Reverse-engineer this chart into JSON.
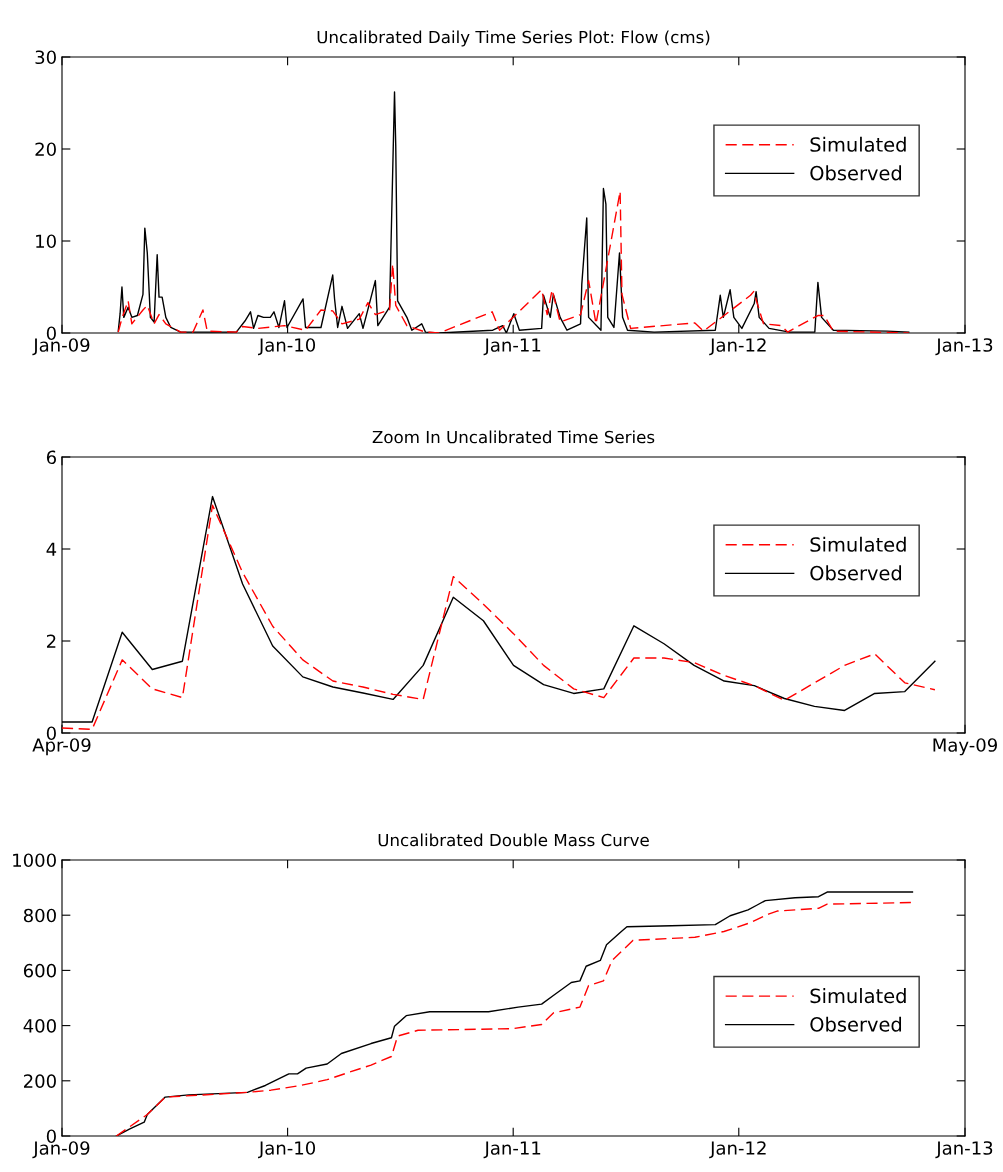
{
  "chart_data": [
    {
      "type": "line",
      "title": "Uncalibrated Daily Time Series Plot: Flow (cms)",
      "xlim": [
        "2009-01-01",
        "2013-01-01"
      ],
      "ylim": [
        0,
        30
      ],
      "xticks": [
        {
          "value": "2009-01-01",
          "label": "Jan-09"
        },
        {
          "value": "2010-01-01",
          "label": "Jan-10"
        },
        {
          "value": "2011-01-01",
          "label": "Jan-11"
        },
        {
          "value": "2012-01-01",
          "label": "Jan-12"
        },
        {
          "value": "2013-01-01",
          "label": "Jan-13"
        }
      ],
      "yticks": [
        0,
        10,
        20,
        30
      ],
      "grid": false,
      "legend": "right",
      "series": [
        {
          "name": "Simulated",
          "color": "#ff0000",
          "line_style": "dashed",
          "x": [
            "2009-04-02",
            "2009-04-08",
            "2009-04-18",
            "2009-04-24",
            "2009-05-12",
            "2009-05-19",
            "2009-05-30",
            "2009-06-07",
            "2009-06-18",
            "2009-07-12",
            "2009-08-01",
            "2009-08-17",
            "2009-08-24",
            "2009-10-10",
            "2009-10-20",
            "2009-11-14",
            "2009-12-27",
            "2010-01-30",
            "2010-02-24",
            "2010-03-15",
            "2010-03-30",
            "2010-04-27",
            "2010-05-11",
            "2010-05-23",
            "2010-06-15",
            "2010-06-20",
            "2010-06-25",
            "2010-07-13",
            "2010-08-12",
            "2010-09-03",
            "2010-11-28",
            "2010-12-10",
            "2011-02-16",
            "2011-02-25",
            "2011-03-05",
            "2011-03-18",
            "2011-04-20",
            "2011-05-03",
            "2011-05-15",
            "2011-06-23",
            "2011-06-26",
            "2011-07-10",
            "2011-10-22",
            "2011-11-05",
            "2012-01-20",
            "2012-01-25",
            "2012-02-10",
            "2012-03-10",
            "2012-03-20",
            "2012-05-08",
            "2012-05-18",
            "2012-06-02",
            "2012-10-02"
          ],
          "values": [
            0.1,
            1.6,
            3.5,
            1.0,
            2.5,
            3.0,
            1.0,
            2.0,
            1.0,
            0.1,
            0.1,
            2.5,
            0.2,
            0.1,
            0.7,
            0.5,
            0.8,
            0.3,
            2.5,
            2.4,
            1.0,
            1.5,
            3.3,
            2.0,
            2.5,
            7.5,
            3.0,
            0.8,
            0.1,
            0.0,
            2.3,
            0.3,
            4.7,
            2.0,
            4.7,
            1.2,
            2.0,
            5.7,
            1.0,
            15.4,
            4.2,
            0.5,
            1.1,
            0.2,
            4.1,
            4.5,
            1.0,
            0.8,
            0.1,
            1.9,
            1.9,
            0.2,
            0.0
          ]
        },
        {
          "name": "Observed",
          "color": "#000000",
          "line_style": "solid",
          "x": [
            "2009-04-02",
            "2009-04-05",
            "2009-04-08",
            "2009-04-11",
            "2009-04-18",
            "2009-04-24",
            "2009-05-03",
            "2009-05-12",
            "2009-05-15",
            "2009-05-19",
            "2009-05-24",
            "2009-05-30",
            "2009-06-04",
            "2009-06-07",
            "2009-06-12",
            "2009-06-18",
            "2009-06-26",
            "2009-07-12",
            "2009-08-17",
            "2009-10-10",
            "2009-10-24",
            "2009-11-02",
            "2009-11-07",
            "2009-11-14",
            "2009-11-23",
            "2009-12-04",
            "2009-12-10",
            "2009-12-18",
            "2009-12-27",
            "2009-12-31",
            "2010-01-26",
            "2010-01-30",
            "2010-02-24",
            "2010-03-15",
            "2010-03-18",
            "2010-03-23",
            "2010-03-30",
            "2010-04-08",
            "2010-04-27",
            "2010-05-03",
            "2010-05-23",
            "2010-05-27",
            "2010-06-15",
            "2010-06-23",
            "2010-06-25",
            "2010-06-28",
            "2010-07-13",
            "2010-07-21",
            "2010-08-06",
            "2010-08-12",
            "2010-09-03",
            "2010-11-29",
            "2010-12-15",
            "2010-12-21",
            "2011-01-02",
            "2011-01-11",
            "2011-02-16",
            "2011-02-19",
            "2011-03-02",
            "2011-03-07",
            "2011-03-18",
            "2011-03-29",
            "2011-04-20",
            "2011-04-22",
            "2011-04-30",
            "2011-05-03",
            "2011-05-23",
            "2011-05-27",
            "2011-05-31",
            "2011-06-03",
            "2011-06-13",
            "2011-06-22",
            "2011-06-27",
            "2011-07-05",
            "2011-08-17",
            "2011-11-24",
            "2011-12-02",
            "2011-12-07",
            "2011-12-18",
            "2011-12-24",
            "2012-01-06",
            "2012-01-26",
            "2012-01-29",
            "2012-02-03",
            "2012-02-19",
            "2012-03-23",
            "2012-05-03",
            "2012-05-08",
            "2012-05-14",
            "2012-06-02",
            "2012-08-28",
            "2012-10-02"
          ],
          "values": [
            0.2,
            2.1,
            5.0,
            1.7,
            2.8,
            1.7,
            1.9,
            4.2,
            11.4,
            8.7,
            1.7,
            1.2,
            8.5,
            3.9,
            3.9,
            1.7,
            0.6,
            0.1,
            0.1,
            0.1,
            1.3,
            2.3,
            0.5,
            1.9,
            1.7,
            1.7,
            2.3,
            0.6,
            3.5,
            0.6,
            3.7,
            0.6,
            0.6,
            6.3,
            3.7,
            0.6,
            2.9,
            0.5,
            2.1,
            0.5,
            5.7,
            0.8,
            2.8,
            26.2,
            20.3,
            3.5,
            1.7,
            0.3,
            1.0,
            0.1,
            0.0,
            0.3,
            0.8,
            0.0,
            2.1,
            0.3,
            0.5,
            4.1,
            1.7,
            4.2,
            1.7,
            0.3,
            1.0,
            5.3,
            12.5,
            1.7,
            0.3,
            15.7,
            14.0,
            1.7,
            0.6,
            8.7,
            1.7,
            0.3,
            0.1,
            0.3,
            4.1,
            1.7,
            4.7,
            1.7,
            0.5,
            3.2,
            4.5,
            1.7,
            0.5,
            0.1,
            0.1,
            5.5,
            1.7,
            0.3,
            0.2,
            0.1
          ]
        }
      ]
    },
    {
      "type": "line",
      "title": "Zoom In Uncalibrated Time Series",
      "xlim": [
        "2009-04-01",
        "2009-05-01"
      ],
      "ylim": [
        0,
        6
      ],
      "xticks": [
        {
          "value": "2009-04-01",
          "label": "Apr-09"
        },
        {
          "value": "2009-05-01",
          "label": "May-09"
        }
      ],
      "yticks": [
        0,
        2,
        4,
        6
      ],
      "grid": false,
      "legend": "right",
      "x": [
        "2009-04-01",
        "2009-04-02",
        "2009-04-03",
        "2009-04-04",
        "2009-04-05",
        "2009-04-06",
        "2009-04-07",
        "2009-04-08",
        "2009-04-09",
        "2009-04-10",
        "2009-04-11",
        "2009-04-12",
        "2009-04-13",
        "2009-04-14",
        "2009-04-15",
        "2009-04-16",
        "2009-04-17",
        "2009-04-18",
        "2009-04-19",
        "2009-04-20",
        "2009-04-21",
        "2009-04-22",
        "2009-04-23",
        "2009-04-24",
        "2009-04-25",
        "2009-04-26",
        "2009-04-27",
        "2009-04-28",
        "2009-04-29",
        "2009-04-30"
      ],
      "series": [
        {
          "name": "Simulated",
          "color": "#ff0000",
          "line_style": "dashed",
          "values": [
            0.11,
            0.08,
            1.59,
            0.96,
            0.77,
            4.95,
            3.49,
            2.32,
            1.59,
            1.13,
            1.0,
            0.84,
            0.73,
            3.4,
            2.8,
            2.16,
            1.47,
            0.96,
            0.77,
            1.63,
            1.63,
            1.53,
            1.25,
            1.03,
            0.71,
            1.09,
            1.47,
            1.72,
            1.09,
            0.94
          ]
        },
        {
          "name": "Observed",
          "color": "#000000",
          "line_style": "solid",
          "values": [
            0.24,
            0.24,
            2.19,
            1.38,
            1.56,
            5.14,
            3.24,
            1.89,
            1.22,
            1.0,
            0.87,
            0.73,
            1.47,
            2.95,
            2.44,
            1.47,
            1.05,
            0.86,
            0.96,
            2.33,
            1.94,
            1.47,
            1.13,
            1.03,
            0.75,
            0.58,
            0.49,
            0.86,
            0.9,
            1.56
          ]
        }
      ]
    },
    {
      "type": "line",
      "title": "Uncalibrated Double Mass Curve",
      "xlim": [
        "2009-01-01",
        "2013-01-01"
      ],
      "ylim": [
        0,
        1000
      ],
      "xticks": [
        {
          "value": "2009-01-01",
          "label": "Jan-09"
        },
        {
          "value": "2010-01-01",
          "label": "Jan-10"
        },
        {
          "value": "2011-01-01",
          "label": "Jan-11"
        },
        {
          "value": "2012-01-01",
          "label": "Jan-12"
        },
        {
          "value": "2013-01-01",
          "label": "Jan-13"
        }
      ],
      "yticks": [
        0,
        200,
        400,
        600,
        800,
        1000
      ],
      "grid": false,
      "legend": "right",
      "series": [
        {
          "name": "Simulated",
          "color": "#ff0000",
          "line_style": "dashed",
          "x": [
            "2009-03-30",
            "2009-05-19",
            "2009-06-17",
            "2009-10-28",
            "2009-12-05",
            "2010-01-22",
            "2010-03-06",
            "2010-04-08",
            "2010-05-16",
            "2010-06-18",
            "2010-06-28",
            "2010-07-31",
            "2010-12-31",
            "2011-02-16",
            "2011-03-07",
            "2011-04-19",
            "2011-05-03",
            "2011-05-27",
            "2011-06-10",
            "2011-07-14",
            "2011-10-22",
            "2011-12-08",
            "2012-01-20",
            "2012-02-18",
            "2012-03-03",
            "2012-05-09",
            "2012-05-23",
            "2012-10-08"
          ],
          "values": [
            0,
            78,
            141,
            158,
            166,
            183,
            204,
            229,
            257,
            288,
            362,
            383,
            389,
            404,
            446,
            467,
            545,
            562,
            636,
            709,
            720,
            741,
            773,
            804,
            815,
            825,
            840,
            846
          ]
        },
        {
          "name": "Observed",
          "color": "#000000",
          "line_style": "solid",
          "x": [
            "2009-03-30",
            "2009-04-20",
            "2009-05-14",
            "2009-05-19",
            "2009-06-17",
            "2009-07-25",
            "2009-10-28",
            "2009-11-26",
            "2010-01-03",
            "2010-01-17",
            "2010-01-31",
            "2010-03-06",
            "2010-03-29",
            "2010-05-16",
            "2010-06-18",
            "2010-06-23",
            "2010-07-12",
            "2010-08-19",
            "2010-11-22",
            "2011-01-09",
            "2011-02-16",
            "2011-03-07",
            "2011-04-05",
            "2011-04-19",
            "2011-04-29",
            "2011-05-22",
            "2011-06-01",
            "2011-06-25",
            "2011-07-04",
            "2011-09-14",
            "2011-11-24",
            "2011-12-18",
            "2012-01-16",
            "2012-01-30",
            "2012-02-13",
            "2012-04-01",
            "2012-05-09",
            "2012-05-23",
            "2012-10-08"
          ],
          "values": [
            0,
            25,
            50,
            78,
            141,
            149,
            158,
            183,
            225,
            225,
            246,
            261,
            299,
            335,
            356,
            398,
            436,
            450,
            450,
            467,
            478,
            509,
            556,
            562,
            615,
            636,
            693,
            741,
            758,
            762,
            766,
            798,
            819,
            836,
            853,
            863,
            867,
            884,
            884
          ]
        }
      ]
    }
  ]
}
